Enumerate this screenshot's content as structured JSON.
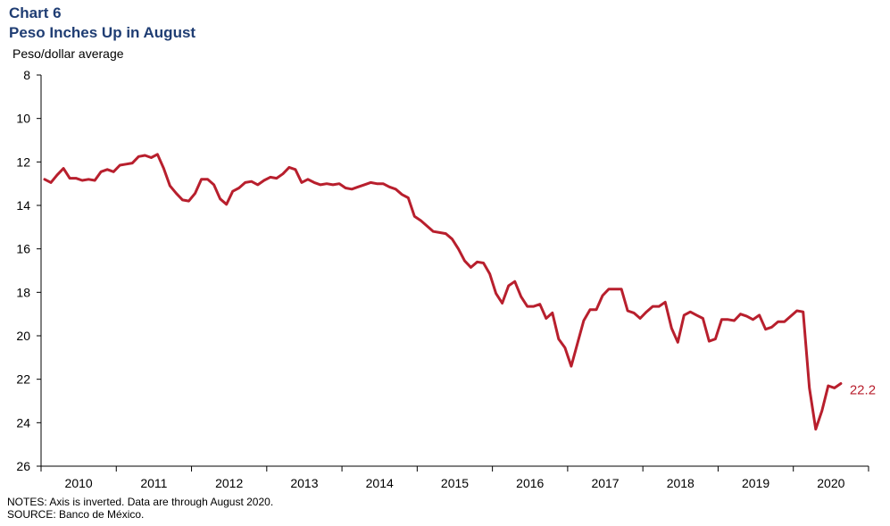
{
  "header": {
    "chart_number": "Chart 6",
    "title": "Peso Inches Up in August",
    "unit_label": "Peso/dollar average"
  },
  "footer": {
    "notes": "NOTES: Axis is inverted. Data are through August 2020.",
    "source": "SOURCE: Banco de México."
  },
  "chart_data": {
    "type": "line",
    "title": "Peso Inches Up in August",
    "ylabel": "Peso/dollar average",
    "ylim": [
      8,
      26
    ],
    "y_inverted": true,
    "y_ticks": [
      "8",
      "10",
      "12",
      "14",
      "16",
      "18",
      "20",
      "22",
      "24",
      "26"
    ],
    "x_ticks": [
      "2010",
      "2011",
      "2012",
      "2013",
      "2014",
      "2015",
      "2016",
      "2017",
      "2018",
      "2019",
      "2020"
    ],
    "line_color": "#b81f2d",
    "end_label": "22.2",
    "series": [
      {
        "start": "2010-01",
        "values": [
          12.8,
          12.95,
          12.6,
          12.3,
          12.75,
          12.75,
          12.85,
          12.8,
          12.85,
          12.45,
          12.35,
          12.45,
          12.15,
          12.1,
          12.05,
          11.75,
          11.7,
          11.8,
          11.65,
          12.3,
          13.1,
          13.45,
          13.75,
          13.8,
          13.45,
          12.8,
          12.8,
          13.05,
          13.7,
          13.95,
          13.35,
          13.2,
          12.95,
          12.9,
          13.05,
          12.85,
          12.7,
          12.75,
          12.55,
          12.25,
          12.35,
          12.95,
          12.8,
          12.95,
          13.05,
          13.0,
          13.05,
          13.0,
          13.2,
          13.25,
          13.15,
          13.05,
          12.95,
          13.0,
          13.0,
          13.15,
          13.25,
          13.5,
          13.65,
          14.5,
          14.7,
          14.95,
          15.2,
          15.25,
          15.3,
          15.55,
          16.0,
          16.55,
          16.85,
          16.6,
          16.65,
          17.15,
          18.05,
          18.5,
          17.7,
          17.5,
          18.2,
          18.65,
          18.65,
          18.55,
          19.2,
          18.95,
          20.15,
          20.55,
          21.4,
          20.35,
          19.3,
          18.8,
          18.8,
          18.15,
          17.85,
          17.85,
          17.85,
          18.85,
          18.95,
          19.2,
          18.9,
          18.65,
          18.65,
          18.45,
          19.65,
          20.3,
          19.05,
          18.9,
          19.05,
          19.2,
          20.25,
          20.15,
          19.25,
          19.25,
          19.3,
          19.0,
          19.1,
          19.25,
          19.05,
          19.7,
          19.6,
          19.35,
          19.35,
          19.1,
          18.85,
          18.9,
          22.4,
          24.3,
          23.45,
          22.3,
          22.4,
          22.2
        ]
      }
    ]
  }
}
